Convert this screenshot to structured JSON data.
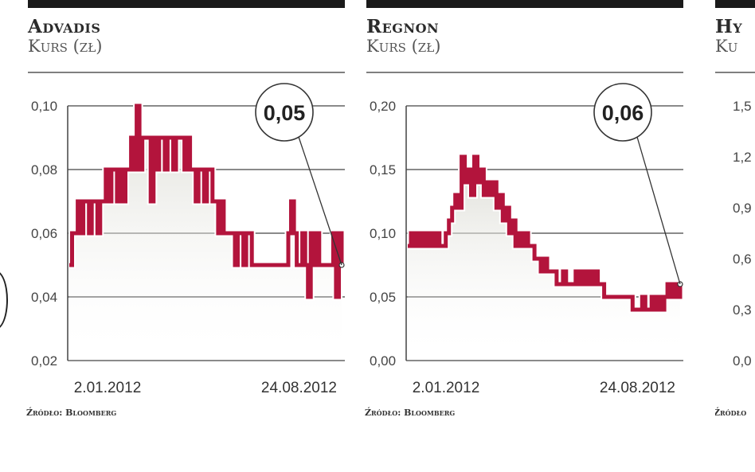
{
  "colors": {
    "line": "#b3143c",
    "bar": "#1a1a1a",
    "axis": "#444444",
    "fill": "#d8d8d0"
  },
  "panels": [
    {
      "company": "Advadis",
      "subtitle": "Kurs (zł)",
      "source": "Źródło: Bloomberg",
      "callout": "0,05",
      "x_start_label": "2.01.2012",
      "x_end_label": "24.08.2012"
    },
    {
      "company": "Regnon",
      "subtitle": "Kurs (zł)",
      "source": "Źródło: Bloomberg",
      "callout": "0,06",
      "x_start_label": "2.01.2012",
      "x_end_label": "24.08.2012"
    },
    {
      "company": "Hy",
      "subtitle": "Ku",
      "source": "Źródło",
      "y_ticks": [
        "1,5",
        "1,2",
        "0,9",
        "0,6",
        "0,3",
        "0,0"
      ]
    }
  ],
  "chart_data": [
    {
      "type": "line",
      "title": "Advadis",
      "subtitle": "Kurs (zł)",
      "x_labels": [
        "2.01.2012",
        "24.08.2012"
      ],
      "ylim": [
        0.02,
        0.1
      ],
      "y_ticks": [
        "0,10",
        "0,08",
        "0,06",
        "0,04",
        "0,02"
      ],
      "grid": true,
      "last_value_label": "0,05",
      "series": [
        {
          "values": [
            0.05,
            0.06,
            0.06,
            0.07,
            0.06,
            0.07,
            0.07,
            0.06,
            0.07,
            0.07,
            0.06,
            0.07,
            0.07,
            0.08,
            0.07,
            0.08,
            0.08,
            0.07,
            0.08,
            0.07,
            0.08,
            0.08,
            0.09,
            0.08,
            0.1,
            0.08,
            0.09,
            0.09,
            0.09,
            0.07,
            0.09,
            0.08,
            0.09,
            0.09,
            0.08,
            0.09,
            0.09,
            0.08,
            0.09,
            0.09,
            0.09,
            0.08,
            0.09,
            0.08,
            0.08,
            0.07,
            0.08,
            0.08,
            0.07,
            0.08,
            0.08,
            0.07,
            0.07,
            0.06,
            0.07,
            0.06,
            0.06,
            0.06,
            0.06,
            0.05,
            0.06,
            0.06,
            0.05,
            0.06,
            0.06,
            0.05,
            0.05,
            0.05,
            0.05,
            0.05,
            0.05,
            0.05,
            0.05,
            0.05,
            0.05,
            0.05,
            0.05,
            0.05,
            0.06,
            0.07,
            0.06,
            0.05,
            0.05,
            0.06,
            0.05,
            0.04,
            0.06,
            0.05,
            0.06,
            0.05,
            0.05,
            0.05,
            0.05,
            0.05,
            0.06,
            0.04,
            0.06,
            0.05
          ]
        }
      ]
    },
    {
      "type": "line",
      "title": "Regnon",
      "subtitle": "Kurs (zł)",
      "x_labels": [
        "2.01.2012",
        "24.08.2012"
      ],
      "ylim": [
        0.0,
        0.2
      ],
      "y_ticks": [
        "0,20",
        "0,15",
        "0,10",
        "0,05",
        "0,00"
      ],
      "grid": true,
      "last_value_label": "0,06",
      "series": [
        {
          "values": [
            0.09,
            0.1,
            0.09,
            0.1,
            0.09,
            0.1,
            0.09,
            0.1,
            0.09,
            0.1,
            0.09,
            0.09,
            0.1,
            0.11,
            0.12,
            0.13,
            0.12,
            0.16,
            0.14,
            0.15,
            0.13,
            0.16,
            0.14,
            0.15,
            0.13,
            0.14,
            0.13,
            0.14,
            0.12,
            0.13,
            0.11,
            0.12,
            0.1,
            0.11,
            0.09,
            0.1,
            0.09,
            0.1,
            0.09,
            0.09,
            0.08,
            0.08,
            0.07,
            0.08,
            0.07,
            0.07,
            0.07,
            0.06,
            0.06,
            0.07,
            0.06,
            0.06,
            0.06,
            0.07,
            0.06,
            0.07,
            0.06,
            0.07,
            0.06,
            0.07,
            0.06,
            0.06,
            0.05,
            0.05,
            0.05,
            0.05,
            0.05,
            0.05,
            0.05,
            0.05,
            0.05,
            0.04,
            0.04,
            0.04,
            0.05,
            0.04,
            0.04,
            0.05,
            0.04,
            0.05,
            0.04,
            0.05,
            0.06,
            0.05,
            0.06,
            0.05,
            0.06
          ]
        }
      ]
    }
  ]
}
